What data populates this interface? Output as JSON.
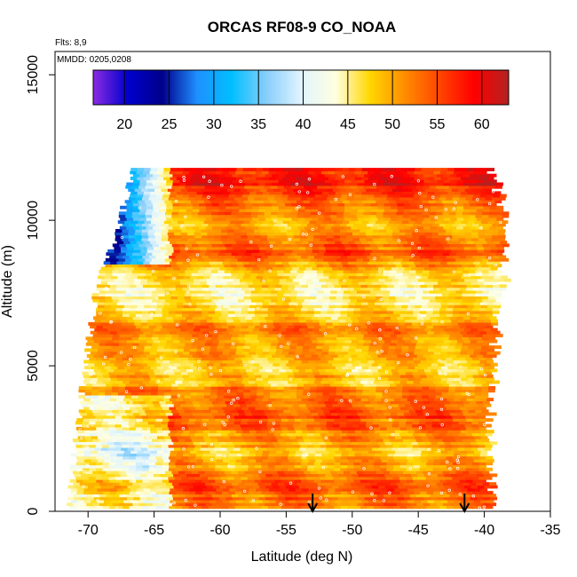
{
  "chart_data": {
    "type": "heatmap",
    "title": "ORCAS RF08-9 CO_NOAA",
    "xlabel": "Latitude (deg N)",
    "ylabel": "Altitude (m)",
    "xlim": [
      -72.5,
      -35
    ],
    "ylim": [
      0,
      15800
    ],
    "x_ticks": [
      -70,
      -65,
      -60,
      -55,
      -50,
      -45,
      -40,
      -35
    ],
    "y_ticks": [
      0,
      5000,
      10000,
      15000
    ],
    "flights_note": "Flts: 8,9",
    "date_note": "MMDD: 0205,0208",
    "colorbar": {
      "min": 16.5,
      "max": 63,
      "ticks": [
        20,
        25,
        30,
        35,
        40,
        45,
        50,
        55,
        60
      ],
      "stops": [
        "#8B2BE2",
        "#0000CD",
        "#00008B",
        "#1E90FF",
        "#00BFFF",
        "#87CEFA",
        "#E0F4FF",
        "#FFFFE0",
        "#FFD700",
        "#FF8C00",
        "#FF4500",
        "#FF0000",
        "#B22222"
      ]
    },
    "arrows_x": [
      -53,
      -41.5
    ],
    "coverage": {
      "left_edge": [
        [
          0,
          -71.5
        ],
        [
          2000,
          -71
        ],
        [
          5000,
          -70.2
        ],
        [
          8000,
          -69.2
        ],
        [
          9500,
          -67.8
        ],
        [
          11800,
          -66.5
        ]
      ],
      "right_edge": [
        [
          0,
          -39.5
        ],
        [
          3000,
          -39.8
        ],
        [
          6000,
          -39.3
        ],
        [
          8000,
          -38.8
        ],
        [
          10000,
          -38.5
        ],
        [
          11500,
          -39.5
        ]
      ],
      "top": 11800,
      "bottom": 100
    },
    "low_value_region": {
      "lat_range": [
        -68,
        -64
      ],
      "alt_range": [
        8500,
        11800
      ],
      "value": 25
    },
    "background_value": 50
  }
}
